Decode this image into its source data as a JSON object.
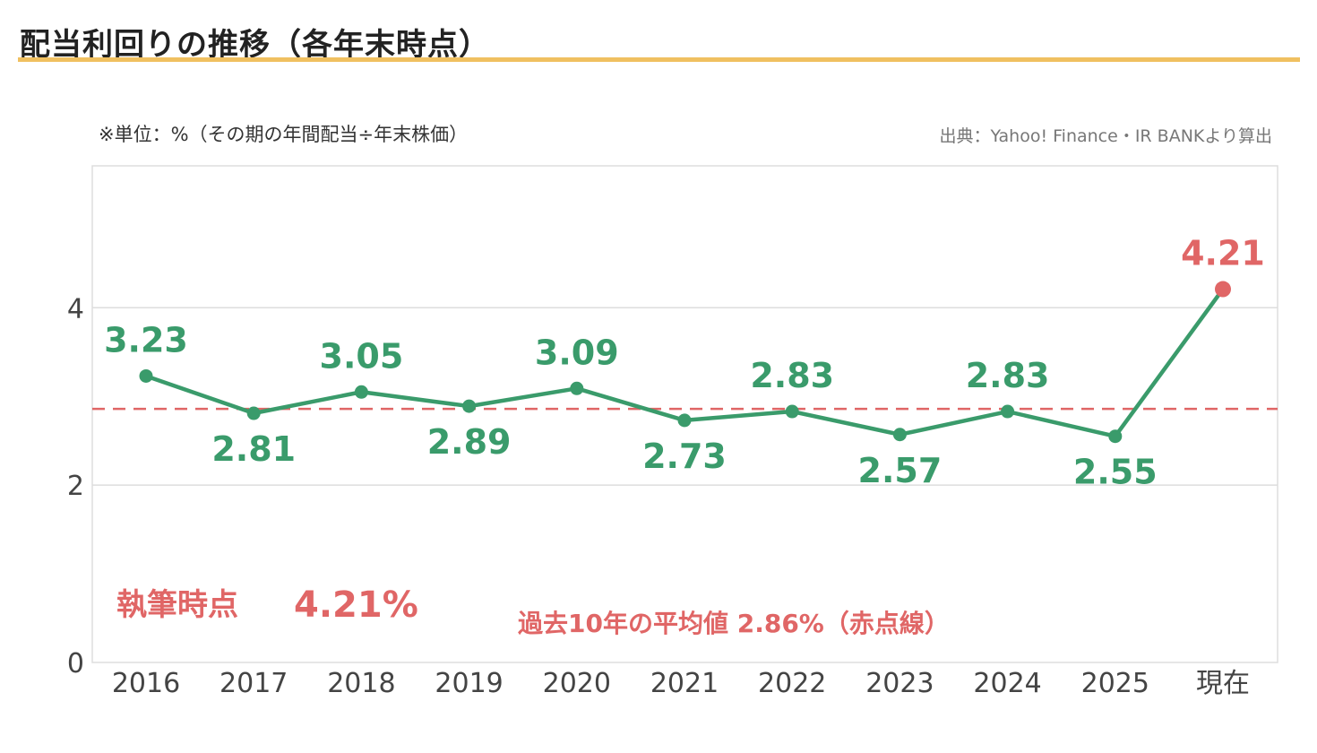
{
  "page": {
    "title": "配当利回りの推移（各年末時点）",
    "unit_note": "※単位：%（その期の年間配当÷年末株価）",
    "source_note": "出典：Yahoo! Finance・IR BANKより算出"
  },
  "annotations": {
    "current_label": "執筆時点",
    "current_value": "4.21%",
    "average_note": "過去10年の平均値 2.86%（赤点線）"
  },
  "colors": {
    "line": "#3a9b6b",
    "highlight": "#e06666",
    "average_line": "#e06666",
    "grid": "#dddddd",
    "title_rule": "#f0c060",
    "axis_text": "#444444"
  },
  "chart_data": {
    "type": "line",
    "categories": [
      "2016",
      "2017",
      "2018",
      "2019",
      "2020",
      "2021",
      "2022",
      "2023",
      "2024",
      "2025",
      "現在"
    ],
    "series": [
      {
        "values": [
          3.23,
          2.81,
          3.05,
          2.89,
          3.09,
          2.73,
          2.83,
          2.57,
          2.83,
          2.55,
          4.21
        ],
        "labels": [
          "3.23",
          "2.81",
          "3.05",
          "2.89",
          "3.09",
          "2.73",
          "2.83",
          "2.57",
          "2.83",
          "2.55",
          "4.21"
        ],
        "label_positions": [
          "above",
          "below",
          "above",
          "below",
          "above",
          "below",
          "above",
          "below",
          "above",
          "below",
          "above"
        ],
        "highlight_index": 10
      }
    ],
    "average": 2.86,
    "ylim": [
      0,
      5.6
    ],
    "yticks": [
      0,
      2,
      4
    ],
    "grid": true,
    "xlabel": "",
    "ylabel": ""
  }
}
